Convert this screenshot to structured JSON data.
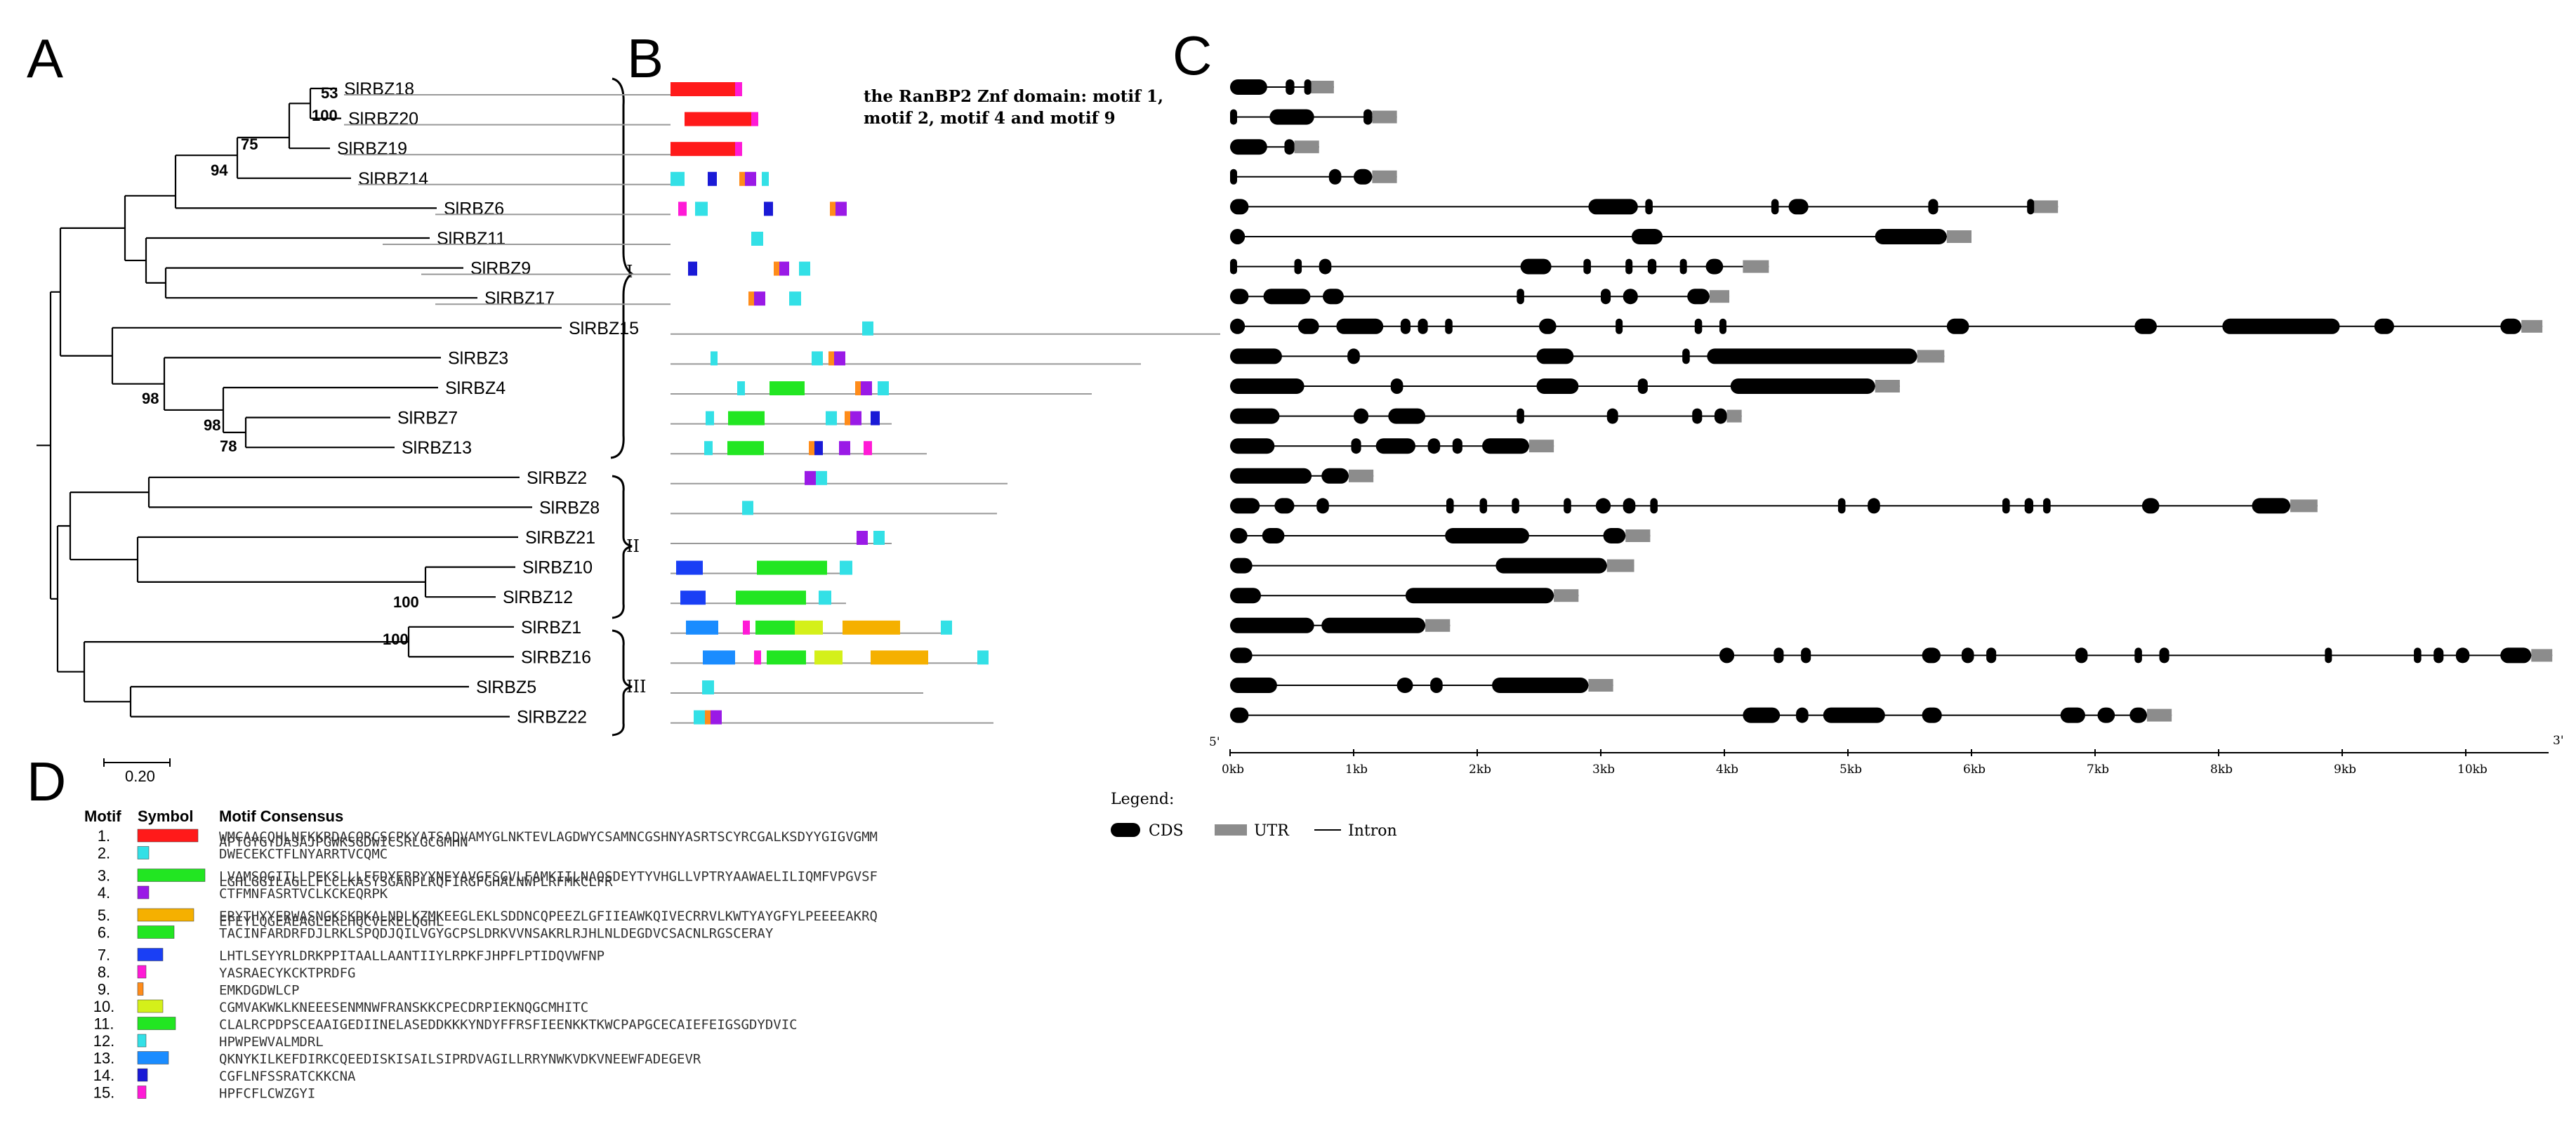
{
  "panels": {
    "a": "A",
    "b": "B",
    "c": "C",
    "d": "D"
  },
  "tree": {
    "genes": [
      "SlRBZ18",
      "SlRBZ20",
      "SlRBZ19",
      "SlRBZ14",
      "SlRBZ6",
      "SlRBZ11",
      "SlRBZ9",
      "SlRBZ17",
      "SlRBZ15",
      "SlRBZ3",
      "SlRBZ4",
      "SlRBZ7",
      "SlRBZ13",
      "SlRBZ2",
      "SlRBZ8",
      "SlRBZ21",
      "SlRBZ10",
      "SlRBZ12",
      "SlRBZ1",
      "SlRBZ16",
      "SlRBZ5",
      "SlRBZ22"
    ],
    "bootstrap": [
      "53",
      "100",
      "75",
      "94",
      "98",
      "98",
      "78",
      "100",
      "100"
    ],
    "scale_label": "0.20",
    "group_labels": [
      "I",
      "II",
      "III"
    ]
  },
  "motif_note": [
    "the RanBP2 Znf domain: motif 1,",
    "motif 2, motif 4 and motif 9"
  ],
  "colors": {
    "m1": "#ff1a1a",
    "m2": "#33e0e6",
    "m3": "#22e622",
    "m4": "#9a1ae6",
    "m5": "#f5b000",
    "m6": "#22e622",
    "m7": "#1a3ff5",
    "m8": "#ff1ad6",
    "m9": "#ff8c1a",
    "m10": "#d4f01a",
    "m11": "#22e622",
    "m12": "#33e0e6",
    "m13": "#1a8cff",
    "m14": "#1a1ad6",
    "m15": "#ff1ad6",
    "cds": "#000000",
    "utr": "#8c8c8c",
    "intron": "#000000"
  },
  "gene_structure": {
    "axis_ticks": [
      "0kb",
      "1kb",
      "2kb",
      "3kb",
      "4kb",
      "5kb",
      "6kb",
      "7kb",
      "8kb",
      "9kb",
      "10kb"
    ],
    "five_prime": "5'",
    "three_prime": "3'",
    "legend_title": "Legend:",
    "legend_items": {
      "cds": "CDS",
      "utr": "UTR",
      "intron": "Intron"
    }
  },
  "motif_table": {
    "headers": {
      "motif": "Motif",
      "symbol": "Symbol",
      "consensus": "Motif Consensus"
    },
    "rows": [
      {
        "num": "1.",
        "color": "#ff1a1a",
        "lines": [
          "WMCAACQHLNFKKRDACQRCSCPKYATSADVAMYGLNKTEVLAGDWYCSAMNCGSHNYASRTSCYRCGALKSDYYGIGVGMM"
        ]
      },
      {
        "num": "2.",
        "color": "#33e0e6",
        "lines": [
          "APTGYGYDASAJPGWKSGDWICSRLGCGMHN",
          "DWECEKCTFLNYARRTVCQMC"
        ]
      },
      {
        "num": "3.",
        "color": "#22e622",
        "lines": [
          "LVAMSQGITLLPEKSLLLFFDYERPYYNEYAVGFSGVLFAMKIILNAQSDEYTYVHGLLVPTRYAAWAELILIQMFVPGVSF"
        ]
      },
      {
        "num": "4.",
        "color": "#9a1ae6",
        "lines": [
          "LGHLGGILAGLLFLCLKASYSGANPLRQFIRGFGHALNWPLRFMKCLFR",
          "CTFMNFASRTVCLKCKEQRPK"
        ]
      },
      {
        "num": "5.",
        "color": "#f5b000",
        "lines": [
          "ERYTHYYERWASNGKSKDKALNDLKZMKEEGLEKLSDDNCQPEEZLGFIIEAWKQIVECRRVLKWTYAYGFYLPEEEEAKRQ"
        ]
      },
      {
        "num": "6.",
        "color": "#22e622",
        "lines": [
          "EFEYLQGEAEAGLERLHQCVEKELQGHL",
          "TACINFARDRFDJLRKLSPQDJQILVGYGCPSLDRKVVNSAKRLRJHLNLDEGDVCSACNLRGSCERAY"
        ]
      },
      {
        "num": "7.",
        "color": "#1a3ff5",
        "lines": [
          "LHTLSEYYRLDRKPPITAALLAANTIIYLRPKFJHPFLPTIDQVWFNP"
        ]
      },
      {
        "num": "8.",
        "color": "#ff1ad6",
        "lines": [
          "YASRAECYKCKTPRDFG"
        ]
      },
      {
        "num": "9.",
        "color": "#ff8c1a",
        "lines": [
          "EMKDGDWLCP"
        ]
      },
      {
        "num": "10.",
        "color": "#d4f01a",
        "lines": [
          "CGMVAKWKLKNEEESENMNWFRANSKKCPECDRPIEKNQGCMHITC"
        ]
      },
      {
        "num": "11.",
        "color": "#22e622",
        "lines": [
          "CLALRCPDPSCEAAIGEDIINELASEDDKKKYNDYFFRSFIEENKKTKWCPAPGCECAIEFEIGSGDYDVIC"
        ]
      },
      {
        "num": "12.",
        "color": "#33e0e6",
        "lines": [
          "HPWPEWVALMDRL"
        ]
      },
      {
        "num": "13.",
        "color": "#1a8cff",
        "lines": [
          "QKNYKILKEFDIRKCQEEDISKISAILSIPRDVAGILLRRYNWKVDKVNEEWFADEGEVR"
        ]
      },
      {
        "num": "14.",
        "color": "#1a1ad6",
        "lines": [
          "CGFLNFSSRATCKKCNA"
        ]
      },
      {
        "num": "15.",
        "color": "#ff1ad6",
        "lines": [
          "HPFCFLCWZGYI"
        ]
      }
    ]
  }
}
